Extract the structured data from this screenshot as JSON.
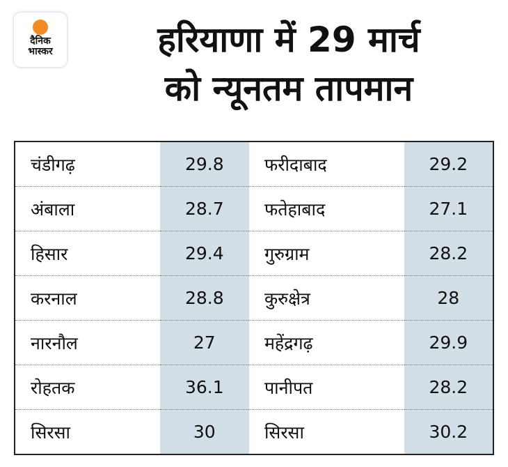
{
  "logo": {
    "text_line1": "दैनिक",
    "text_line2": "भास्कर"
  },
  "title_line1": "हरियाणा में 29 मार्च",
  "title_line2": "को न्यूनतम तापमान",
  "chart_data": {
    "type": "table",
    "title": "हरियाणा में 29 मार्च को न्यूनतम तापमान",
    "rows": [
      {
        "city1": "चंडीगढ़",
        "temp1": "29.8",
        "city2": "फरीदाबाद",
        "temp2": "29.2"
      },
      {
        "city1": "अंबाला",
        "temp1": "28.7",
        "city2": "फतेहाबाद",
        "temp2": "27.1"
      },
      {
        "city1": "हिसार",
        "temp1": "29.4",
        "city2": "गुरुग्राम",
        "temp2": "28.2"
      },
      {
        "city1": "करनाल",
        "temp1": "28.8",
        "city2": "कुरुक्षेत्र",
        "temp2": "28"
      },
      {
        "city1": "नारनौल",
        "temp1": "27",
        "city2": "महेंद्रगढ़",
        "temp2": "29.9"
      },
      {
        "city1": "रोहतक",
        "temp1": "36.1",
        "city2": "पानीपत",
        "temp2": "28.2"
      },
      {
        "city1": "सिरसा",
        "temp1": "30",
        "city2": "सिरसा",
        "temp2": "30.2"
      }
    ]
  },
  "colors": {
    "value_bg": "#d3dfe6",
    "logo_sun": "#f08c22"
  }
}
